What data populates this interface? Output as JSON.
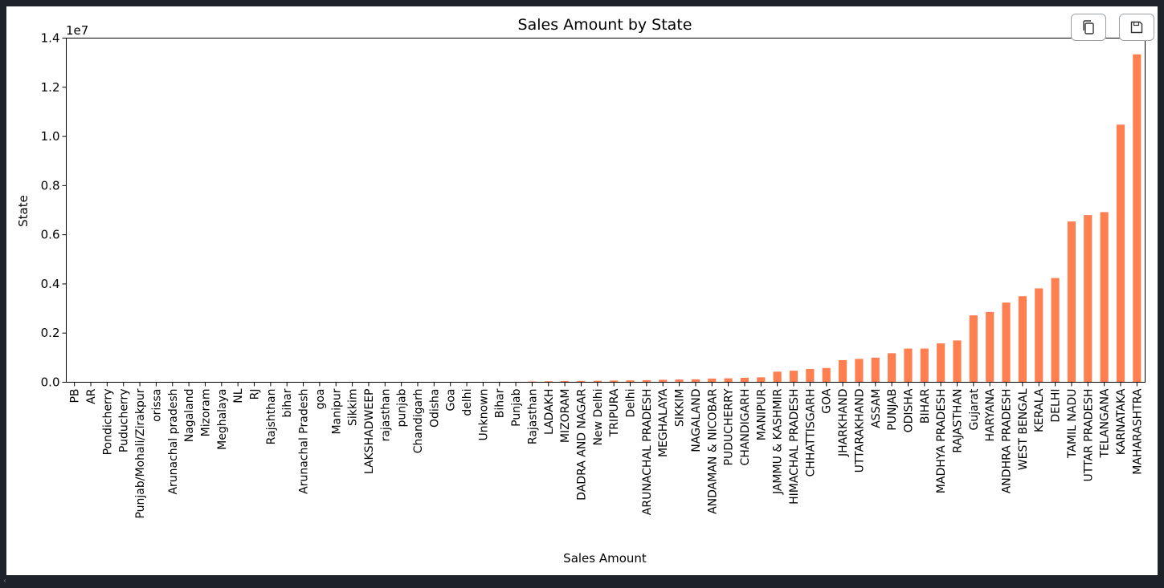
{
  "toolbar": {
    "copy_icon": "copy-icon",
    "save_icon": "save-icon"
  },
  "colors": {
    "bar": "#ff7f50",
    "axis": "#000000",
    "background": "#ffffff",
    "frame": "#1e222a"
  },
  "chart_data": {
    "type": "bar",
    "title": "Sales Amount by State",
    "xlabel": "Sales Amount",
    "ylabel": "State",
    "ylim": [
      0,
      14000000
    ],
    "yticks": [
      "0.0",
      "0.2",
      "0.4",
      "0.6",
      "0.8",
      "1.0",
      "1.2",
      "1.4"
    ],
    "y_offset_label": "1e7",
    "grid": false,
    "categories": [
      "PB",
      "AR",
      "Pondicherry",
      "Puducherry",
      "Punjab/Mohali/Zirakpur",
      "orissa",
      "Arunachal pradesh",
      "Nagaland",
      "Mizoram",
      "Meghalaya",
      "NL",
      "RJ",
      "Rajshthan",
      "bihar",
      "Arunachal Pradesh",
      "goa",
      "Manipur",
      "Sikkim",
      "LAKSHADWEEP",
      "rajasthan",
      "punjab",
      "Chandigarh",
      "Odisha",
      "Goa",
      "delhi",
      "Unknown",
      "Bihar",
      "Punjab",
      "Rajasthan",
      "LADAKH",
      "MIZORAM",
      "DADRA AND NAGAR",
      "New Delhi",
      "TRIPURA",
      "Delhi",
      "ARUNACHAL PRADESH",
      "MEGHALAYA",
      "SIKKIM",
      "NAGALAND",
      "ANDAMAN & NICOBAR",
      "PUDUCHERRY",
      "CHANDIGARH",
      "MANIPUR",
      "JAMMU & KASHMIR",
      "HIMACHAL PRADESH",
      "CHHATTISGARH",
      "GOA",
      "JHARKHAND",
      "UTTARAKHAND",
      "ASSAM",
      "PUNJAB",
      "ODISHA",
      "BIHAR",
      "MADHYA PRADESH",
      "RAJASTHAN",
      "Gujarat",
      "HARYANA",
      "ANDHRA PRADESH",
      "WEST BENGAL",
      "KERALA",
      "DELHI",
      "TAMIL NADU",
      "UTTAR PRADESH",
      "TELANGANA",
      "KARNATAKA",
      "MAHARASHTRA"
    ],
    "values": [
      800,
      1100,
      1500,
      1800,
      2200,
      2600,
      3000,
      3400,
      3800,
      4300,
      4800,
      5300,
      5800,
      6400,
      7000,
      7600,
      8200,
      9000,
      9800,
      10500,
      11500,
      12500,
      13500,
      14500,
      15500,
      17000,
      18500,
      20000,
      30000,
      40000,
      50000,
      55000,
      60000,
      70000,
      75000,
      85000,
      100000,
      110000,
      120000,
      150000,
      160000,
      180000,
      200000,
      430000,
      470000,
      540000,
      580000,
      900000,
      950000,
      1000000,
      1180000,
      1370000,
      1370000,
      1580000,
      1700000,
      2720000,
      2860000,
      3240000,
      3500000,
      3820000,
      4240000,
      6540000,
      6800000,
      6920000,
      10480000,
      13340000
    ]
  }
}
